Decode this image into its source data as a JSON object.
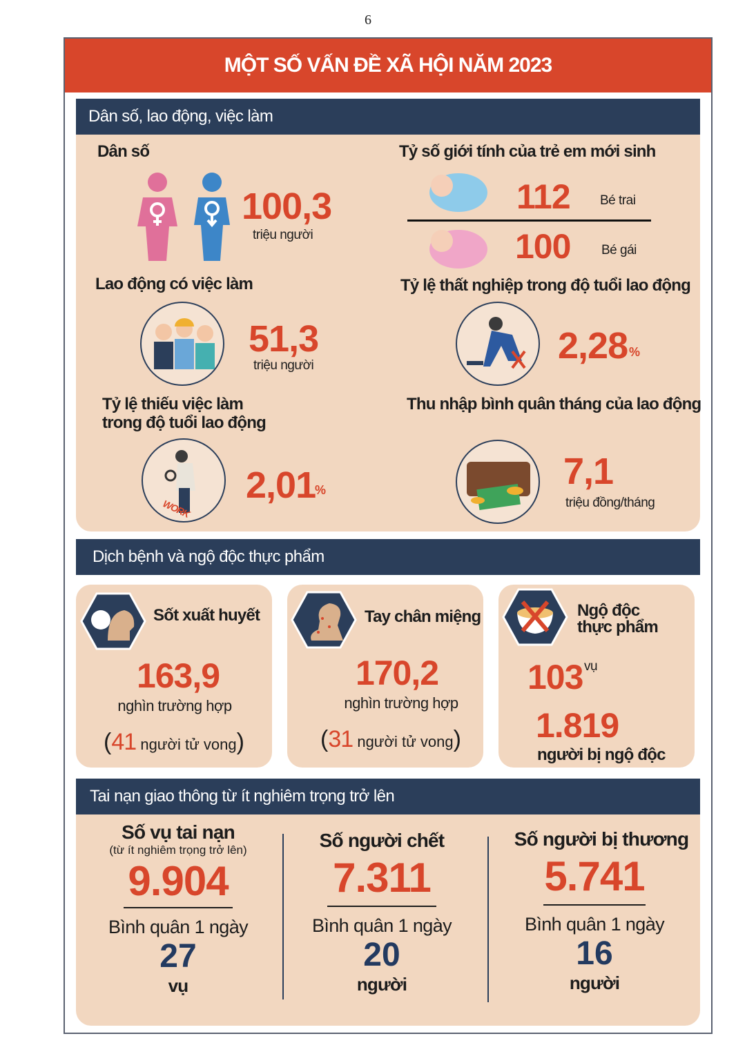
{
  "page_number": "6",
  "title": "MỘT SỐ VẤN ĐỀ XÃ HỘI NĂM 2023",
  "colors": {
    "accent": "#d8462b",
    "navy": "#2b3e5a",
    "panel": "#f2d7c0"
  },
  "s1": {
    "header": "Dân số, lao động, việc làm",
    "population": {
      "label": "Dân số",
      "value": "100,3",
      "unit": "triệu người"
    },
    "sex_ratio": {
      "label": "Tỷ số giới tính của trẻ em mới sinh",
      "boys_value": "112",
      "boys_label": "Bé trai",
      "girls_value": "100",
      "girls_label": "Bé gái"
    },
    "employed": {
      "label": "Lao động có việc làm",
      "value": "51,3",
      "unit": "triệu người"
    },
    "unemployment": {
      "label": "Tỷ lệ thất nghiệp trong độ tuổi lao động",
      "value": "2,28",
      "unit": "%"
    },
    "underemployment": {
      "label1": "Tỷ lệ thiếu việc làm",
      "label2": "trong độ tuổi lao động",
      "value": "2,01",
      "unit": "%",
      "icon_text": "WORK"
    },
    "income": {
      "label": "Thu nhập bình quân tháng của lao động",
      "value": "7,1",
      "unit": "triệu đồng/tháng"
    }
  },
  "s2": {
    "header": "Dịch bệnh và ngộ độc thực phẩm",
    "dengue": {
      "label": "Sốt xuất huyết",
      "value": "163,9",
      "unit": "nghìn trường hợp",
      "deaths": "41",
      "deaths_label": "người tử vong"
    },
    "hfmd": {
      "label": "Tay chân miệng",
      "value": "170,2",
      "unit": "nghìn trường hợp",
      "deaths": "31",
      "deaths_label": "người tử vong"
    },
    "food": {
      "label1": "Ngộ độc",
      "label2": "thực phẩm",
      "cases": "103",
      "cases_unit": "vụ",
      "people": "1.819",
      "people_label": "người bị ngộ độc"
    }
  },
  "s3": {
    "header": "Tai nạn giao thông từ ít nghiêm trọng trở lên",
    "cols": [
      {
        "label": "Số vụ tai nạn",
        "sub": "(từ ít nghiêm trọng trở lên)",
        "value": "9.904",
        "avg_label": "Bình quân 1 ngày",
        "avg": "27",
        "avg_unit": "vụ"
      },
      {
        "label": "Số người chết",
        "value": "7.311",
        "avg_label": "Bình quân 1 ngày",
        "avg": "20",
        "avg_unit": "người"
      },
      {
        "label": "Số người bị thương",
        "value": "5.741",
        "avg_label": "Bình quân 1 ngày",
        "avg": "16",
        "avg_unit": "người"
      }
    ]
  }
}
